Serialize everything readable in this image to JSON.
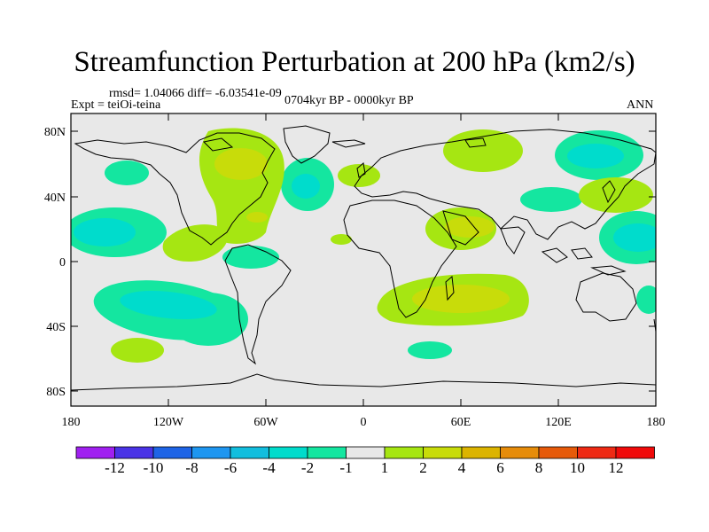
{
  "title": "Streamfunction Perturbation at 200 hPa (km2/s)",
  "stats": "rmsd= 1.04066 diff= -6.03541e-09",
  "experiment": "Expt = teiOi-teina",
  "period": "0704kyr BP - 0000kyr BP",
  "season": "ANN",
  "lat_labels": [
    "80N",
    "40N",
    "0",
    "40S",
    "80S"
  ],
  "lon_labels": [
    "180",
    "120W",
    "60W",
    "0",
    "60E",
    "120E",
    "180"
  ],
  "colorbar": {
    "labels": [
      "-12",
      "-10",
      "-8",
      "-6",
      "-4",
      "-2",
      "-1",
      "1",
      "2",
      "4",
      "6",
      "8",
      "10",
      "12"
    ],
    "colors": [
      "#a020f0",
      "#4a33e6",
      "#1e64e6",
      "#1e96f0",
      "#12bede",
      "#00dccc",
      "#14e6a0",
      "#e8e8e8",
      "#a6e612",
      "#c8dc0a",
      "#dcb400",
      "#e68c0a",
      "#e65a0a",
      "#ee2a14",
      "#f00a0a"
    ]
  },
  "colors": {
    "background": "#e8e8e8",
    "neg1": "#14e6a0",
    "neg2": "#00dccc",
    "neg4": "#12bede",
    "pos1": "#a6e612",
    "pos2": "#c8dc0a"
  }
}
